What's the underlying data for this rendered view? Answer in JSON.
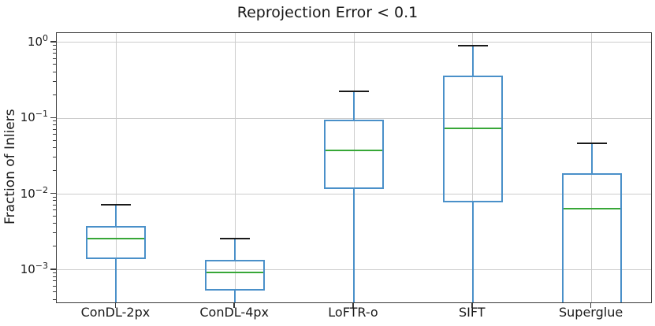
{
  "figure": {
    "title": "Reprojection Error < 0.1",
    "ylabel": "Fraction of Inliers"
  },
  "chart_data": {
    "type": "box",
    "title": "Reprojection Error < 0.1",
    "ylabel": "Fraction of Inliers",
    "xlabel": "",
    "y_scale": "log",
    "ylim": [
      0.000375,
      1.33
    ],
    "grid": true,
    "y_major_tick_exponents": [
      0,
      -1,
      -2,
      -3
    ],
    "y_major_tick_labels": [
      "10⁰",
      "10⁻¹",
      "10⁻²",
      "10⁻³"
    ],
    "categories": [
      "ConDL-2px",
      "ConDL-4px",
      "LoFTR-o",
      "SIFT",
      "Superglue"
    ],
    "series": [
      {
        "label": "ConDL-2px",
        "whisker_high": 0.0073,
        "q3": 0.0038,
        "median": 0.0026,
        "q1": 0.0014,
        "whisker_low": null,
        "whisker_low_clipped": true,
        "q1_clipped": false
      },
      {
        "label": "ConDL-4px",
        "whisker_high": 0.0026,
        "q3": 0.00135,
        "median": 0.00092,
        "q1": 0.00054,
        "whisker_low": null,
        "whisker_low_clipped": true,
        "q1_clipped": false
      },
      {
        "label": "LoFTR-o",
        "whisker_high": 0.225,
        "q3": 0.096,
        "median": 0.038,
        "q1": 0.0118,
        "whisker_low": null,
        "whisker_low_clipped": true,
        "q1_clipped": false
      },
      {
        "label": "SIFT",
        "whisker_high": 0.9,
        "q3": 0.37,
        "median": 0.074,
        "q1": 0.0078,
        "whisker_low": null,
        "whisker_low_clipped": true,
        "q1_clipped": false
      },
      {
        "label": "Superglue",
        "whisker_high": 0.047,
        "q3": 0.019,
        "median": 0.0064,
        "q1": null,
        "whisker_low": null,
        "whisker_low_clipped": true,
        "q1_clipped": true
      }
    ],
    "colors": {
      "box": "#4a90c9",
      "median": "#37a737",
      "cap": "#1a1a1a",
      "whisker": "#4a90c9",
      "grid": "#cccccc",
      "spine": "#3a3a3a",
      "text": "#1a1a1a",
      "background": "#ffffff"
    }
  }
}
